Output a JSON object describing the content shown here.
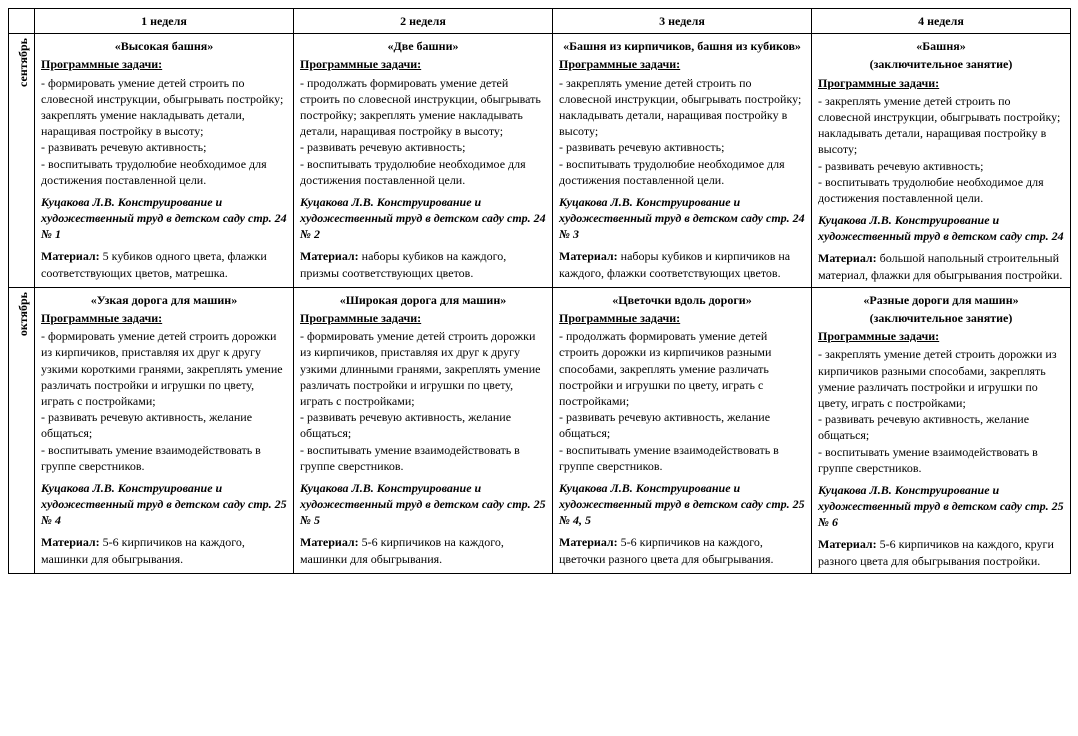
{
  "headers": [
    "1 неделя",
    "2 неделя",
    "3 неделя",
    "4 неделя"
  ],
  "tasksLabel": "Программные задачи:",
  "materialLabel": "Материал:",
  "months": [
    {
      "name": "сентябрь",
      "weeks": [
        {
          "title": "«Высокая башня»",
          "subtitle": "",
          "tasks": "- формировать умение детей строить по словесной инструкции, обыгрывать постройку; закреплять умение накладывать детали, наращивая постройку в высоту;\n- развивать речевую активность;\n- воспитывать трудолюбие необходимое для достижения поставленной цели.",
          "source": "Куцакова Л.В. Конструирование и художественный труд в детском саду стр. 24 № 1",
          "material": "5 кубиков одного цвета, флажки соответствующих цветов, матрешка."
        },
        {
          "title": "«Две башни»",
          "subtitle": "",
          "tasks": "- продолжать формировать умение детей строить по словесной инструкции, обыгрывать постройку; закреплять умение накладывать детали, наращивая постройку в высоту;\n- развивать речевую активность;\n- воспитывать трудолюбие необходимое для достижения поставленной цели.",
          "source": "Куцакова Л.В. Конструирование и художественный труд в детском саду стр. 24 № 2",
          "material": "наборы кубиков на каждого, призмы соответствующих цветов."
        },
        {
          "title": "«Башня из кирпичиков, башня из кубиков»",
          "subtitle": "",
          "tasks": "- закреплять умение детей строить по словесной инструкции, обыгрывать постройку; накладывать детали, наращивая постройку в высоту;\n- развивать речевую активность;\n- воспитывать трудолюбие необходимое для достижения поставленной цели.",
          "source": "Куцакова Л.В. Конструирование и художественный труд в детском саду стр. 24 № 3",
          "material": "наборы кубиков  и кирпичиков на каждого, флажки соответствующих цветов."
        },
        {
          "title": "«Башня»",
          "subtitle": "(заключительное занятие)",
          "tasks": "- закреплять умение детей строить по словесной инструкции, обыгрывать постройку; накладывать детали, наращивая постройку в высоту;\n- развивать речевую активность;\n- воспитывать трудолюбие необходимое для достижения поставленной цели.",
          "source": "Куцакова Л.В. Конструирование и художественный труд в детском саду стр. 24",
          "material": "большой напольный строительный материал, флажки для обыгрывания постройки."
        }
      ]
    },
    {
      "name": "октябрь",
      "weeks": [
        {
          "title": "«Узкая дорога для машин»",
          "subtitle": "",
          "tasks": "- формировать умение детей строить дорожки из кирпичиков, приставляя их друг к другу узкими короткими гранями, закреплять умение различать постройки и игрушки по цвету, играть с постройками;\n- развивать речевую активность, желание общаться;\n- воспитывать умение взаимодействовать в группе сверстников.",
          "source": "Куцакова Л.В. Конструирование и художественный труд в детском саду стр. 25 № 4",
          "material": "5-6 кирпичиков на каждого, машинки для обыгрывания."
        },
        {
          "title": "«Широкая дорога для машин»",
          "subtitle": "",
          "tasks": "- формировать умение детей строить дорожки из кирпичиков, приставляя их друг к другу узкими длинными гранями, закреплять умение различать постройки и игрушки по цвету, играть с постройками;\n- развивать речевую активность, желание общаться;\n- воспитывать умение взаимодействовать в группе сверстников.",
          "source": "Куцакова Л.В. Конструирование и художественный труд в детском саду стр. 25 № 5",
          "material": "5-6 кирпичиков на каждого, машинки для обыгрывания."
        },
        {
          "title": "«Цветочки вдоль дороги»",
          "subtitle": "",
          "tasks": "- продолжать формировать умение детей строить дорожки из кирпичиков разными способами, закреплять умение различать постройки и игрушки по цвету, играть с постройками;\n- развивать речевую активность, желание общаться;\n- воспитывать умение взаимодействовать в группе сверстников.",
          "source": "Куцакова Л.В. Конструирование и художественный труд в детском саду стр. 25 № 4, 5",
          "material": " 5-6 кирпичиков на каждого, цветочки разного цвета для обыгрывания."
        },
        {
          "title": "«Разные дороги для машин»",
          "subtitle": "(заключительное занятие)",
          "tasks": "- закреплять умение детей строить дорожки из кирпичиков разными способами, закреплять умение различать постройки и игрушки по цвету, играть с постройками;\n- развивать речевую активность, желание общаться;\n- воспитывать умение взаимодействовать в группе сверстников.",
          "source": "Куцакова Л.В. Конструирование и художественный труд в детском саду стр. 25 № 6",
          "material": "5-6 кирпичиков на каждого, круги разного цвета для обыгрывания постройки."
        }
      ]
    }
  ]
}
